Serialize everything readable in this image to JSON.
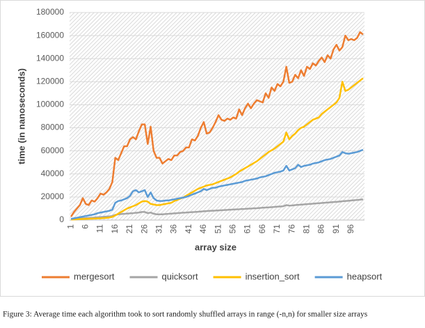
{
  "chart_data": {
    "type": "line",
    "x_label": "array size",
    "y_label": "time (in nanoseconds)",
    "caption": "Figure 3: Average time each algorithm took to sort randomly shuffled arrays in range (-n,n) for smaller size arrays",
    "legend": "bottom",
    "grid": true,
    "ylim": [
      0,
      180000
    ],
    "yticks": [
      0,
      20000,
      40000,
      60000,
      80000,
      100000,
      120000,
      140000,
      160000,
      180000
    ],
    "categories": [
      1,
      null,
      null,
      null,
      null,
      6,
      null,
      null,
      null,
      null,
      11,
      null,
      null,
      null,
      null,
      16,
      null,
      null,
      null,
      null,
      21,
      null,
      null,
      null,
      null,
      26,
      null,
      null,
      null,
      null,
      31,
      null,
      null,
      null,
      null,
      36,
      null,
      null,
      null,
      null,
      41,
      null,
      null,
      null,
      null,
      46,
      null,
      null,
      null,
      null,
      51,
      null,
      null,
      null,
      null,
      56,
      null,
      null,
      null,
      null,
      61,
      null,
      null,
      null,
      null,
      66,
      null,
      null,
      null,
      null,
      71,
      null,
      null,
      null,
      null,
      76,
      null,
      null,
      null,
      null,
      81,
      null,
      null,
      null,
      null,
      86,
      null,
      null,
      null,
      null,
      91,
      null,
      null,
      null,
      null,
      96,
      null,
      null,
      null,
      null
    ],
    "series": [
      {
        "name": "mergesort",
        "color": "#ed7d31",
        "values": [
          3000,
          7000,
          10000,
          13000,
          19000,
          14000,
          13000,
          17000,
          16000,
          19000,
          23000,
          22000,
          24000,
          27000,
          33000,
          54000,
          52000,
          58000,
          64000,
          64000,
          70000,
          72000,
          70000,
          77000,
          83000,
          83000,
          66000,
          81000,
          60000,
          54000,
          54000,
          49000,
          51000,
          53000,
          52000,
          56000,
          56000,
          59000,
          60000,
          63000,
          63000,
          70000,
          69000,
          73000,
          80000,
          85000,
          75000,
          76000,
          80000,
          85000,
          91000,
          87000,
          86000,
          88000,
          87000,
          89000,
          88000,
          96000,
          91000,
          97000,
          101000,
          97000,
          101000,
          104000,
          103000,
          102000,
          110000,
          106000,
          115000,
          112000,
          118000,
          116000,
          120000,
          133000,
          119000,
          120000,
          126000,
          123000,
          130000,
          125000,
          133000,
          131000,
          136000,
          134000,
          138000,
          141000,
          137000,
          143000,
          140000,
          148000,
          152000,
          147000,
          150000,
          160000,
          156000,
          157000,
          156000,
          158000,
          163000,
          161000
        ]
      },
      {
        "name": "quicksort",
        "color": "#a5a5a5",
        "values": [
          500,
          800,
          1000,
          1200,
          1500,
          1700,
          1900,
          2000,
          2200,
          2400,
          2600,
          2800,
          3000,
          3200,
          3500,
          4500,
          5000,
          5200,
          5400,
          5600,
          5800,
          6000,
          6300,
          6500,
          7000,
          7000,
          6000,
          6500,
          5500,
          5000,
          5000,
          5000,
          5200,
          5400,
          5600,
          5800,
          6000,
          6200,
          6400,
          6500,
          6700,
          6900,
          7000,
          7200,
          7400,
          7600,
          7800,
          8000,
          8100,
          8200,
          8400,
          8500,
          8700,
          8800,
          9000,
          9100,
          9300,
          9400,
          9600,
          9700,
          9900,
          10000,
          10200,
          10300,
          10500,
          10700,
          10900,
          11000,
          11200,
          11400,
          11600,
          11800,
          12000,
          13000,
          12500,
          12700,
          13000,
          13200,
          13400,
          13600,
          13800,
          14000,
          14200,
          14400,
          14600,
          14800,
          15000,
          15200,
          15400,
          15600,
          15800,
          16000,
          16300,
          16500,
          16700,
          17000,
          17200,
          17400,
          17700,
          18000
        ]
      },
      {
        "name": "insertion_sort",
        "color": "#ffc000",
        "values": [
          500,
          600,
          700,
          800,
          900,
          1000,
          1100,
          1200,
          1300,
          1400,
          1500,
          1700,
          1900,
          2200,
          2800,
          4000,
          5500,
          7000,
          8500,
          10000,
          11000,
          12000,
          13000,
          14500,
          16000,
          16500,
          16000,
          14000,
          13500,
          13000,
          13000,
          13500,
          14000,
          14500,
          15000,
          16500,
          17500,
          18500,
          19500,
          21000,
          22500,
          24000,
          25500,
          27000,
          28000,
          29000,
          30000,
          30500,
          31000,
          32000,
          33000,
          34000,
          35000,
          36000,
          37000,
          38500,
          40000,
          42000,
          43500,
          45000,
          46500,
          48000,
          49500,
          51000,
          53000,
          55000,
          57000,
          59000,
          60500,
          62000,
          64000,
          66000,
          68000,
          76000,
          70000,
          73000,
          75000,
          78000,
          80000,
          81000,
          83000,
          85000,
          87000,
          88000,
          89000,
          92000,
          94000,
          96000,
          98000,
          100000,
          102000,
          106000,
          120000,
          112000,
          113000,
          115000,
          117000,
          119000,
          121000,
          123000
        ]
      },
      {
        "name": "heapsort",
        "color": "#5b9bd5",
        "values": [
          1000,
          1500,
          2000,
          2500,
          3000,
          3500,
          4000,
          4500,
          5000,
          6000,
          6500,
          7000,
          7500,
          8000,
          9000,
          15000,
          16500,
          17000,
          18000,
          19000,
          21000,
          25000,
          26000,
          24000,
          25000,
          26000,
          20000,
          24000,
          19000,
          17000,
          16500,
          16500,
          17000,
          17000,
          17500,
          18000,
          18500,
          19000,
          19500,
          20000,
          21000,
          22000,
          23000,
          24000,
          25000,
          27000,
          26000,
          27000,
          28000,
          28000,
          29000,
          29500,
          30000,
          30500,
          31000,
          31500,
          32000,
          32500,
          33000,
          34000,
          34500,
          35000,
          35500,
          36000,
          37000,
          37500,
          38000,
          39000,
          40000,
          41000,
          41500,
          42000,
          43000,
          47000,
          43000,
          44000,
          45000,
          48000,
          46000,
          47000,
          47500,
          48000,
          49000,
          49500,
          50000,
          51000,
          52000,
          52500,
          53000,
          54000,
          55000,
          56000,
          59000,
          58000,
          57500,
          58000,
          58500,
          59000,
          60000,
          61000
        ]
      }
    ]
  }
}
